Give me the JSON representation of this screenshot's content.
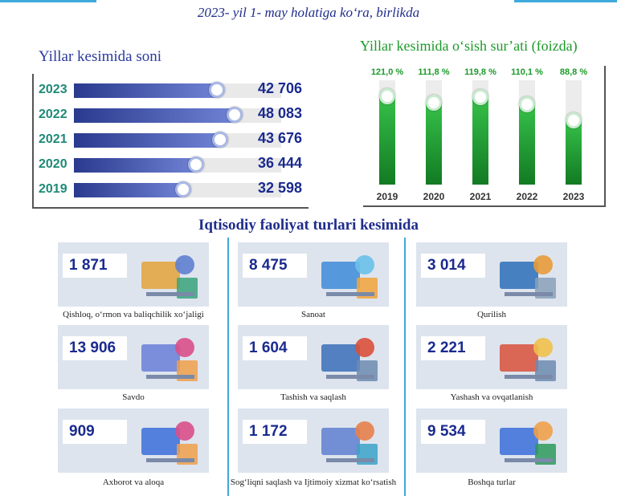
{
  "header": {
    "subtitle": "2023- yil 1- may holatiga ko‘ra, birlikda"
  },
  "colors": {
    "bar_fill_dark": "#2a3a8e",
    "bar_fill_light": "#6f82d4",
    "column_green": "#1c9a2a",
    "text_blue": "#1a2a8f",
    "accent_line": "#3fa9dc",
    "card_bg": "#dde4ee"
  },
  "chart_data": [
    {
      "type": "bar",
      "orientation": "horizontal",
      "title": "Yillar kesimida soni",
      "categories": [
        "2023",
        "2022",
        "2021",
        "2020",
        "2019"
      ],
      "values": [
        42706,
        48083,
        43676,
        36444,
        32598
      ],
      "value_labels": [
        "42 706",
        "48 083",
        "43 676",
        "36 444",
        "32 598"
      ],
      "xlim": [
        0,
        62000
      ]
    },
    {
      "type": "bar",
      "orientation": "vertical",
      "title": "Yillar kesimida o‘sish sur’ati (foizda)",
      "categories": [
        "2019",
        "2020",
        "2021",
        "2022",
        "2023"
      ],
      "values": [
        121.0,
        111.8,
        119.8,
        110.1,
        88.8
      ],
      "value_labels": [
        "121,0 %",
        "111,8 %",
        "119,8 %",
        "110,1 %",
        "88,8 %"
      ],
      "ylim": [
        0,
        140
      ]
    },
    {
      "type": "table",
      "title": "Iqtisodiy faoliyat turlari kesimida",
      "rows": [
        {
          "label": "Qishloq, o‘rmon va baliqchilik xo‘jaligi",
          "value": "1 871",
          "icon": "agriculture-icon"
        },
        {
          "label": "Sanoat",
          "value": "8 475",
          "icon": "industry-icon"
        },
        {
          "label": "Qurilish",
          "value": "3 014",
          "icon": "construction-icon"
        },
        {
          "label": "Savdo",
          "value": "13 906",
          "icon": "shopping-icon"
        },
        {
          "label": "Tashish va saqlash",
          "value": "1 604",
          "icon": "truck-icon"
        },
        {
          "label": "Yashash va ovqatlanish",
          "value": "2 221",
          "icon": "food-service-icon"
        },
        {
          "label": "Axborot va aloqa",
          "value": "909",
          "icon": "it-computer-icon"
        },
        {
          "label": "Sog‘liqni saqlash va Ijtimoiy xizmat ko‘rsatish",
          "value": "1 172",
          "icon": "health-care-icon"
        },
        {
          "label": "Boshqa turlar",
          "value": "9 534",
          "icon": "other-chart-icon"
        }
      ]
    }
  ]
}
